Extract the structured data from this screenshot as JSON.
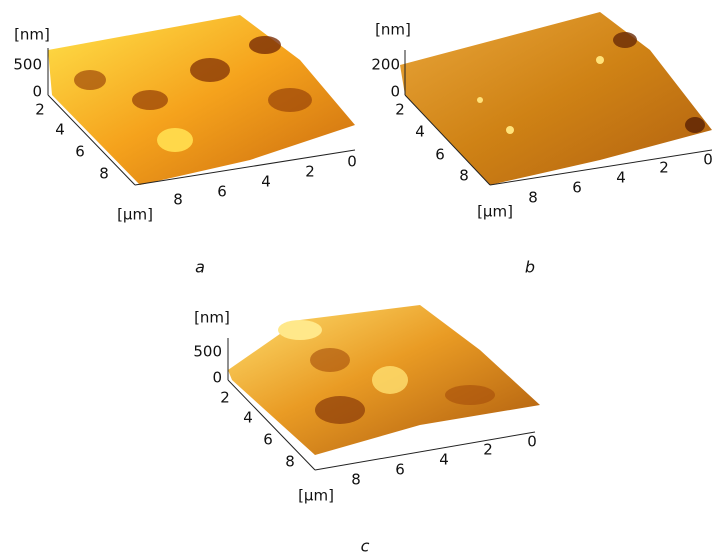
{
  "panels": [
    {
      "z_unit": "[nm]",
      "z_ticks": [
        "500",
        "0"
      ],
      "depth_ticks": [
        "2",
        "4",
        "6",
        "8"
      ],
      "base_ticks": [
        "8",
        "6",
        "4",
        "2",
        "0"
      ],
      "xy_unit": "[μm]",
      "caption": "a"
    },
    {
      "z_unit": "[nm]",
      "z_ticks": [
        "200",
        "0"
      ],
      "depth_ticks": [
        "2",
        "4",
        "6",
        "8"
      ],
      "base_ticks": [
        "8",
        "6",
        "4",
        "2",
        "0"
      ],
      "xy_unit": "[μm]",
      "caption": "b"
    },
    {
      "z_unit": "[nm]",
      "z_ticks": [
        "500",
        "0"
      ],
      "depth_ticks": [
        "2",
        "4",
        "6",
        "8"
      ],
      "base_ticks": [
        "8",
        "6",
        "4",
        "2",
        "0"
      ],
      "xy_unit": "[μm]",
      "caption": "c"
    }
  ]
}
